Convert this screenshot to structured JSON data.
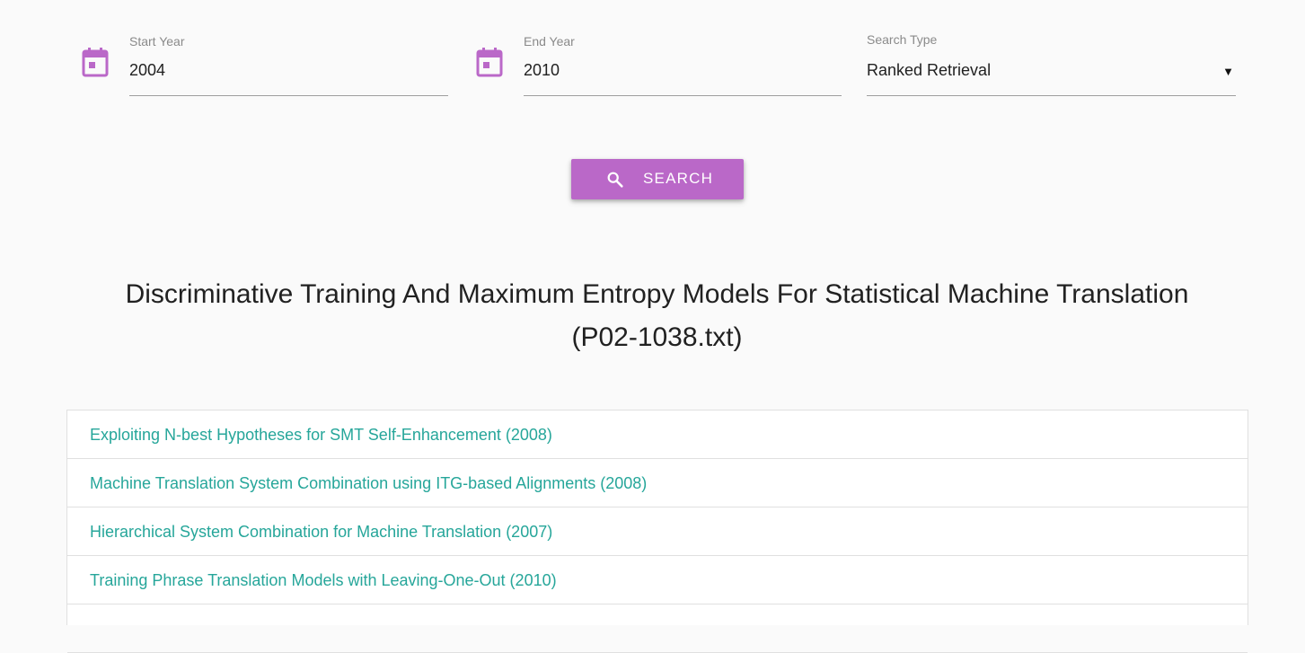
{
  "filters": {
    "start_year": {
      "label": "Start Year",
      "value": "2004",
      "icon": "calendar-icon"
    },
    "end_year": {
      "label": "End Year",
      "value": "2010",
      "icon": "calendar-icon"
    },
    "search_type": {
      "label": "Search Type",
      "value": "Ranked Retrieval",
      "caret": "▼"
    }
  },
  "search_button": {
    "label": "SEARCH",
    "icon": "search-icon"
  },
  "document": {
    "title_line1": "Discriminative Training And Maximum Entropy Models For Statistical Machine Translation",
    "title_line2": "(P02-1038.txt)"
  },
  "results": [
    {
      "text": "Exploiting N-best Hypotheses for SMT Self-Enhancement (2008)"
    },
    {
      "text": "Machine Translation System Combination using ITG-based Alignments (2008)"
    },
    {
      "text": "Hierarchical System Combination for Machine Translation (2007)"
    },
    {
      "text": "Training Phrase Translation Models with Leaving-One-Out (2010)"
    },
    {
      "text": ""
    }
  ],
  "colors": {
    "accent": "#ba68c8",
    "link": "#26a69a",
    "icon": "#ba68c8"
  }
}
